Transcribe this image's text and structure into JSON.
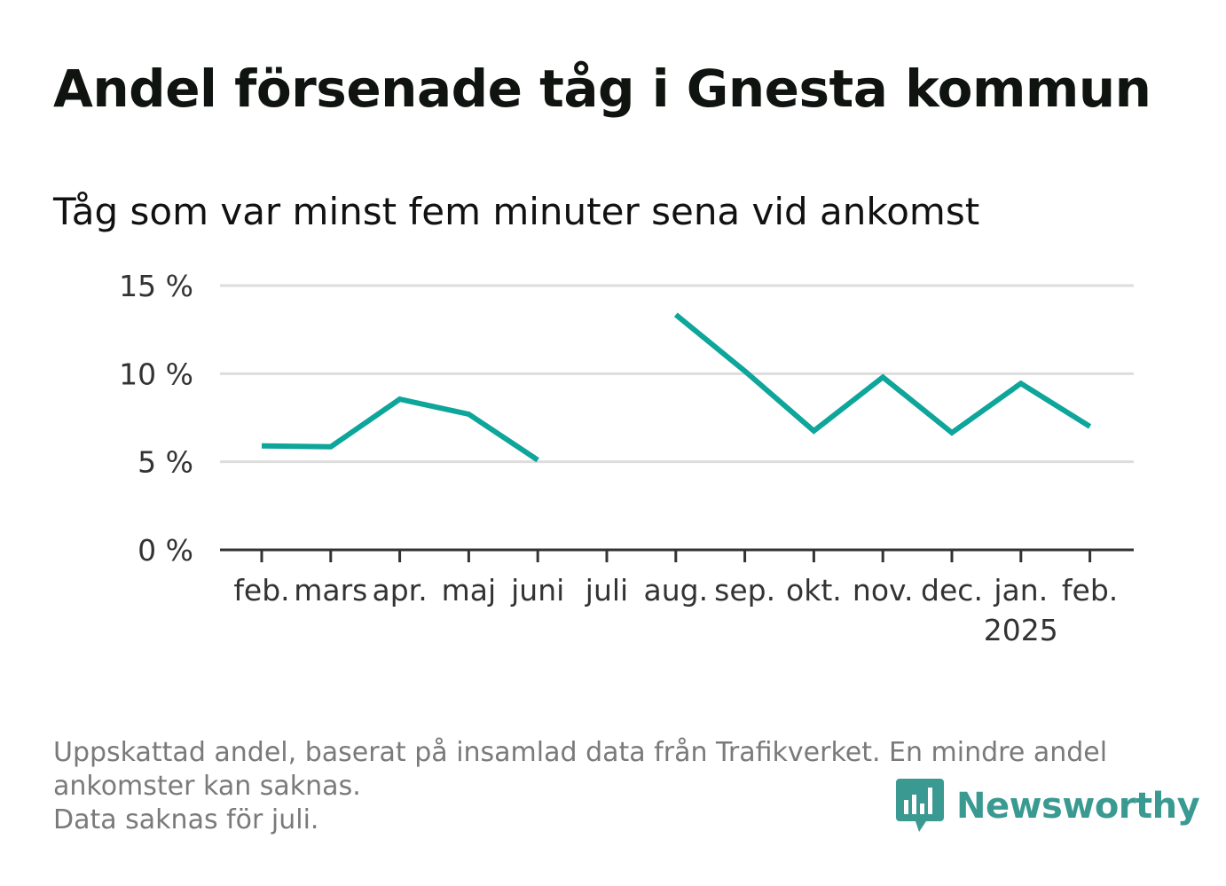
{
  "header": {
    "title": "Andel försenade tåg i Gnesta kommun",
    "subtitle": "Tåg som var minst fem minuter sena vid ankomst"
  },
  "footer": {
    "note_lines": [
      "Uppskattad andel, baserat på insamlad data från Trafikverket. En mindre andel",
      "ankomster kan saknas.",
      "Data saknas för juli."
    ],
    "brand": "Newsworthy"
  },
  "colors": {
    "line": "#0ea59b",
    "grid": "#dddddd",
    "axis": "#333333",
    "brand": "#3a9a92"
  },
  "icons": {
    "brand_logo": "bar-chart-speech-bubble-icon"
  },
  "chart_data": {
    "type": "line",
    "title": "Andel försenade tåg i Gnesta kommun",
    "subtitle": "Tåg som var minst fem minuter sena vid ankomst",
    "categories": [
      "feb.",
      "mars",
      "apr.",
      "maj",
      "juni",
      "juli",
      "aug.",
      "sep.",
      "okt.",
      "nov.",
      "dec.",
      "jan.",
      "feb."
    ],
    "category_sublabels": [
      "",
      "",
      "",
      "",
      "",
      "",
      "",
      "",
      "",
      "",
      "",
      "2025",
      ""
    ],
    "series": [
      {
        "values": [
          5.9,
          5.85,
          8.55,
          7.7,
          5.1,
          null,
          13.35,
          10.15,
          6.75,
          9.8,
          6.65,
          9.45,
          7.0
        ]
      }
    ],
    "ylim": [
      0,
      15
    ],
    "yticks": [
      0,
      5,
      10,
      15
    ],
    "ytick_labels": [
      "0 %",
      "5 %",
      "10 %",
      "15 %"
    ],
    "grid": true,
    "legend": "none"
  }
}
